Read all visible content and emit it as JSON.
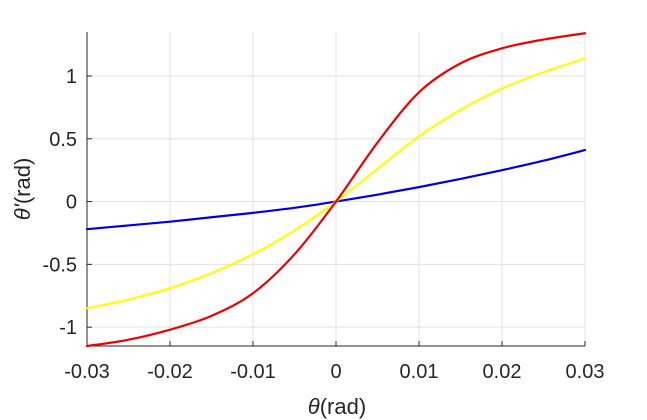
{
  "chart_data": {
    "type": "line",
    "xlabel": {
      "symbol": "θ",
      "unit": "(rad)"
    },
    "ylabel": {
      "symbol": "θ'",
      "unit": "(rad)"
    },
    "xlim": [
      -0.03,
      0.03
    ],
    "ylim": [
      -1.15,
      1.35
    ],
    "x_ticks": [
      -0.03,
      -0.02,
      -0.01,
      0,
      0.01,
      0.02,
      0.03
    ],
    "x_tick_labels": [
      "-0.03",
      "-0.02",
      "-0.01",
      "0",
      "0.01",
      "0.02",
      "0.03"
    ],
    "y_ticks": [
      -1,
      -0.5,
      0,
      0.5,
      1
    ],
    "y_tick_labels": [
      "-1",
      "-0.5",
      "0",
      "0.5",
      "1"
    ],
    "grid": true,
    "series": [
      {
        "color": "#0000dd",
        "x": [
          -0.03,
          -0.025,
          -0.02,
          -0.015,
          -0.01,
          -0.005,
          0,
          0.005,
          0.01,
          0.015,
          0.02,
          0.025,
          0.03
        ],
        "y": [
          -0.22,
          -0.19,
          -0.16,
          -0.125,
          -0.09,
          -0.05,
          0,
          0.055,
          0.115,
          0.18,
          0.25,
          0.325,
          0.41
        ]
      },
      {
        "color": "#ffff00",
        "x": [
          -0.03,
          -0.025,
          -0.02,
          -0.015,
          -0.01,
          -0.005,
          0,
          0.005,
          0.01,
          0.015,
          0.02,
          0.025,
          0.03
        ],
        "y": [
          -0.85,
          -0.78,
          -0.69,
          -0.57,
          -0.42,
          -0.23,
          0,
          0.26,
          0.52,
          0.73,
          0.9,
          1.03,
          1.14
        ]
      },
      {
        "color": "#ee0000",
        "x": [
          -0.03,
          -0.025,
          -0.02,
          -0.015,
          -0.01,
          -0.005,
          0,
          0.005,
          0.01,
          0.015,
          0.02,
          0.025,
          0.03
        ],
        "y": [
          -1.15,
          -1.1,
          -1.02,
          -0.91,
          -0.73,
          -0.42,
          0,
          0.47,
          0.87,
          1.1,
          1.22,
          1.29,
          1.34
        ]
      }
    ]
  }
}
